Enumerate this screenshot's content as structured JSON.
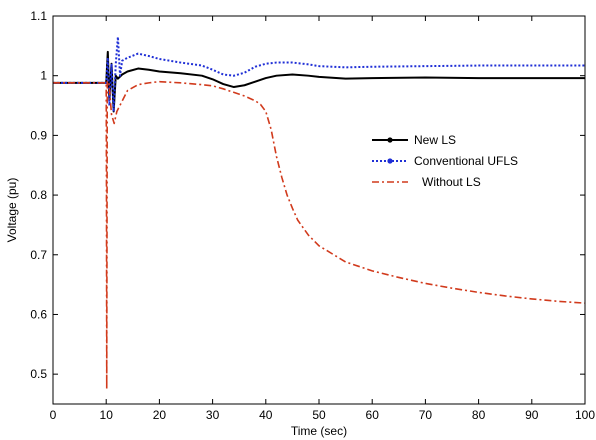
{
  "chart_data": {
    "type": "line",
    "title": "",
    "xlabel": "Time (sec)",
    "ylabel": "Voltage (pu)",
    "xlim": [
      0,
      100
    ],
    "ylim": [
      0.45,
      1.1
    ],
    "xticks": [
      0,
      10,
      20,
      30,
      40,
      50,
      60,
      70,
      80,
      90,
      100
    ],
    "yticks": [
      0.5,
      0.6,
      0.7,
      0.8,
      0.9,
      1,
      1.1
    ],
    "grid": false,
    "legend_position": "center-right",
    "series": [
      {
        "name": "New LS",
        "color": "#000000",
        "style": "solid-with-dot-marker",
        "x": [
          0,
          10,
          10.3,
          10.6,
          11,
          11.4,
          11.8,
          12.2,
          13,
          14,
          16,
          18,
          20,
          24,
          28,
          30,
          32,
          34,
          36,
          38,
          40,
          42,
          45,
          48,
          50,
          55,
          60,
          70,
          80,
          90,
          100
        ],
        "y": [
          0.988,
          0.988,
          1.04,
          0.96,
          1.02,
          0.94,
          1.0,
          0.995,
          1.002,
          1.007,
          1.012,
          1.01,
          1.007,
          1.004,
          1.0,
          0.994,
          0.986,
          0.981,
          0.984,
          0.99,
          0.996,
          1.0,
          1.002,
          1.0,
          0.998,
          0.995,
          0.996,
          0.997,
          0.996,
          0.996,
          0.996
        ]
      },
      {
        "name": "Conventional UFLS",
        "color": "#1f2fd6",
        "style": "dotted-with-dot-marker",
        "x": [
          0,
          10,
          10.3,
          10.6,
          11,
          11.4,
          11.8,
          12.2,
          12.6,
          13,
          14,
          16,
          18,
          20,
          24,
          28,
          30,
          32,
          34,
          36,
          38,
          40,
          42,
          45,
          48,
          50,
          55,
          60,
          70,
          80,
          90,
          100
        ],
        "y": [
          0.988,
          0.988,
          1.03,
          0.95,
          1.02,
          0.94,
          1.02,
          1.065,
          1.0,
          1.025,
          1.03,
          1.037,
          1.033,
          1.028,
          1.022,
          1.017,
          1.01,
          1.002,
          1.0,
          1.005,
          1.015,
          1.02,
          1.022,
          1.022,
          1.019,
          1.016,
          1.014,
          1.015,
          1.016,
          1.017,
          1.017,
          1.017
        ]
      },
      {
        "name": "Without LS",
        "color": "#d13a1c",
        "style": "dash-dot",
        "x": [
          0,
          10,
          10.05,
          10.1,
          10.2,
          10.5,
          11,
          11.5,
          12,
          14,
          16,
          18,
          20,
          24,
          28,
          30,
          32,
          34,
          36,
          38,
          39,
          40,
          41,
          42,
          43,
          44,
          45,
          46,
          48,
          50,
          55,
          60,
          65,
          70,
          75,
          80,
          85,
          90,
          95,
          100
        ],
        "y": [
          0.988,
          0.988,
          0.8,
          0.475,
          0.99,
          0.99,
          0.935,
          0.92,
          0.94,
          0.975,
          0.985,
          0.988,
          0.99,
          0.988,
          0.985,
          0.983,
          0.978,
          0.972,
          0.966,
          0.958,
          0.952,
          0.94,
          0.91,
          0.865,
          0.83,
          0.8,
          0.778,
          0.758,
          0.733,
          0.715,
          0.688,
          0.673,
          0.662,
          0.652,
          0.644,
          0.637,
          0.631,
          0.626,
          0.622,
          0.619
        ]
      }
    ]
  }
}
